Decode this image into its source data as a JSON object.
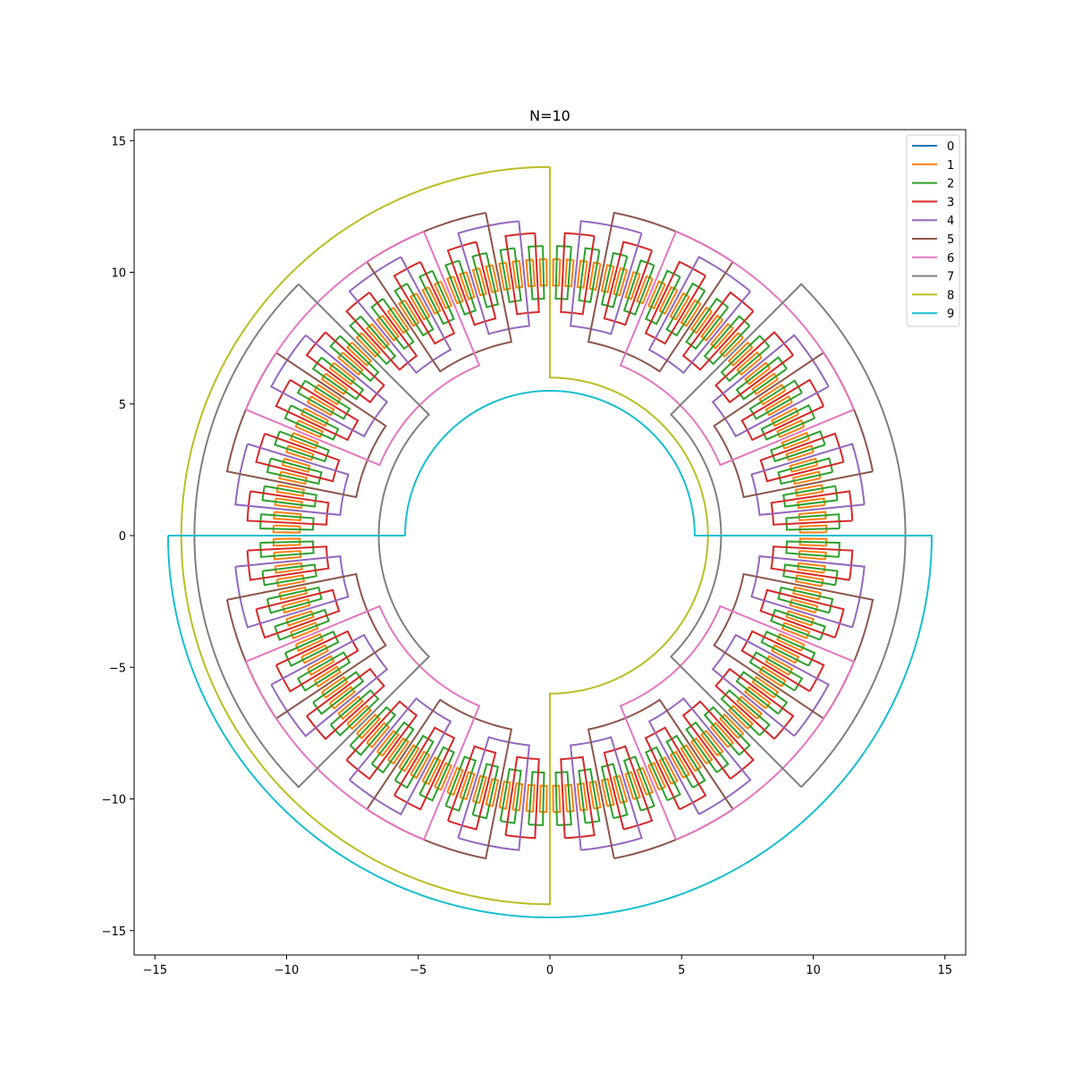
{
  "chart_data": {
    "type": "line",
    "title": "N=10",
    "xlabel": "",
    "ylabel": "",
    "xlim": [
      -15.7,
      15.7
    ],
    "ylim": [
      -15.7,
      15.7
    ],
    "xticks": [
      -15,
      -10,
      -5,
      0,
      5,
      10,
      15
    ],
    "yticks": [
      -15,
      -10,
      -5,
      0,
      5,
      10,
      15
    ],
    "xtick_labels": [
      "−15",
      "−10",
      "−5",
      "0",
      "5",
      "10",
      "15"
    ],
    "ytick_labels": [
      "−15",
      "−10",
      "−5",
      "0",
      "5",
      "10",
      "15"
    ],
    "grid": false,
    "legend_position": "upper right",
    "center_radius": 10,
    "description_note": "",
    "series": [
      {
        "name": "0",
        "color": "#1f77b4",
        "level": 0,
        "copies": 0,
        "tab_width_rad": 0,
        "inner_radius": 0,
        "outer_radius": 0
      },
      {
        "name": "1",
        "color": "#ff7f0e",
        "level": 1,
        "copies": 128,
        "tab_width_rad": 0.0245,
        "inner_radius": 9.5,
        "outer_radius": 10.5
      },
      {
        "name": "2",
        "color": "#2ca02c",
        "level": 2,
        "copies": 64,
        "tab_width_rad": 0.049,
        "inner_radius": 9.0,
        "outer_radius": 11.0
      },
      {
        "name": "3",
        "color": "#d62728",
        "level": 3,
        "copies": 32,
        "tab_width_rad": 0.098,
        "inner_radius": 8.5,
        "outer_radius": 11.5
      },
      {
        "name": "4",
        "color": "#9467bd",
        "level": 4,
        "copies": 16,
        "tab_width_rad": 0.196,
        "inner_radius": 8.0,
        "outer_radius": 12.0
      },
      {
        "name": "5",
        "color": "#8c564b",
        "level": 5,
        "copies": 8,
        "tab_width_rad": 0.393,
        "inner_radius": 7.5,
        "outer_radius": 12.5
      },
      {
        "name": "6",
        "color": "#e377c2",
        "level": 6,
        "copies": 4,
        "tab_width_rad": 0.785,
        "inner_radius": 7.0,
        "outer_radius": 12.5
      },
      {
        "name": "7",
        "color": "#7f7f7f",
        "level": 7,
        "copies": 2,
        "tab_width_rad": 1.571,
        "inner_radius": 6.5,
        "outer_radius": 13.5
      },
      {
        "name": "8",
        "color": "#bcbd22",
        "level": 8,
        "copies": 1,
        "tab_width_rad": 3.1416,
        "inner_radius": 6.0,
        "outer_radius": 14.0
      },
      {
        "name": "9",
        "color": "#17becf",
        "level": 9,
        "copies": 1,
        "tab_width_rad": 6.2832,
        "inner_radius": 5.5,
        "outer_radius": 14.5
      }
    ]
  }
}
